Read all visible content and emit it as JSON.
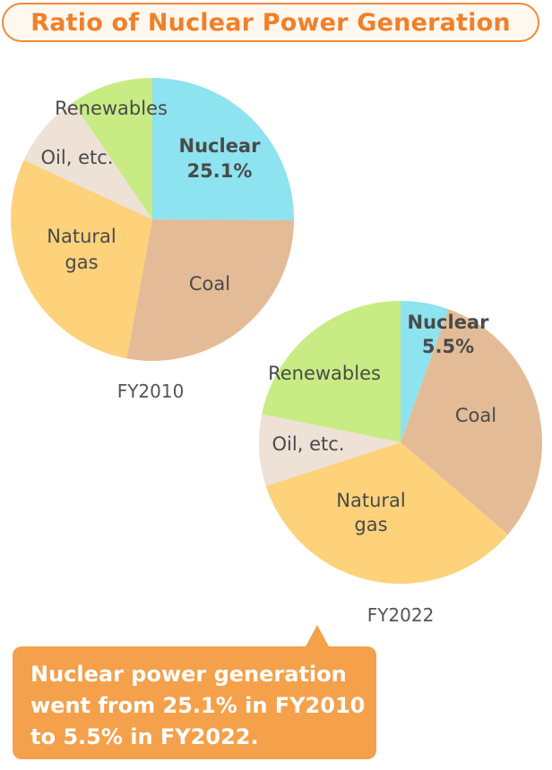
{
  "title": "Ratio of Nuclear Power Generation",
  "chart_data": [
    {
      "type": "pie",
      "label": "FY2010",
      "slices": [
        {
          "name": "Nuclear",
          "value": 25.1,
          "value_label": "25.1%",
          "color": "#8de3ef",
          "emphasis": true
        },
        {
          "name": "Coal",
          "value": 27.8,
          "color": "#e3bc97"
        },
        {
          "name": "Natural gas",
          "value": 29.0,
          "color": "#fdd27a"
        },
        {
          "name": "Oil, etc.",
          "value": 8.6,
          "color": "#eee1d6"
        },
        {
          "name": "Renewables",
          "value": 9.5,
          "color": "#c8ec83"
        }
      ]
    },
    {
      "type": "pie",
      "label": "FY2022",
      "slices": [
        {
          "name": "Nuclear",
          "value": 5.5,
          "value_label": "5.5%",
          "color": "#8de3ef",
          "emphasis": true
        },
        {
          "name": "Coal",
          "value": 30.8,
          "color": "#e3bc97"
        },
        {
          "name": "Natural gas",
          "value": 33.7,
          "color": "#fdd27a"
        },
        {
          "name": "Oil, etc.",
          "value": 8.2,
          "color": "#eee1d6"
        },
        {
          "name": "Renewables",
          "value": 21.8,
          "color": "#c8ec83"
        }
      ]
    }
  ],
  "callout": {
    "lines": [
      "Nuclear power generation",
      "went from 25.1% in FY2010",
      "to 5.5% in FY2022."
    ]
  }
}
